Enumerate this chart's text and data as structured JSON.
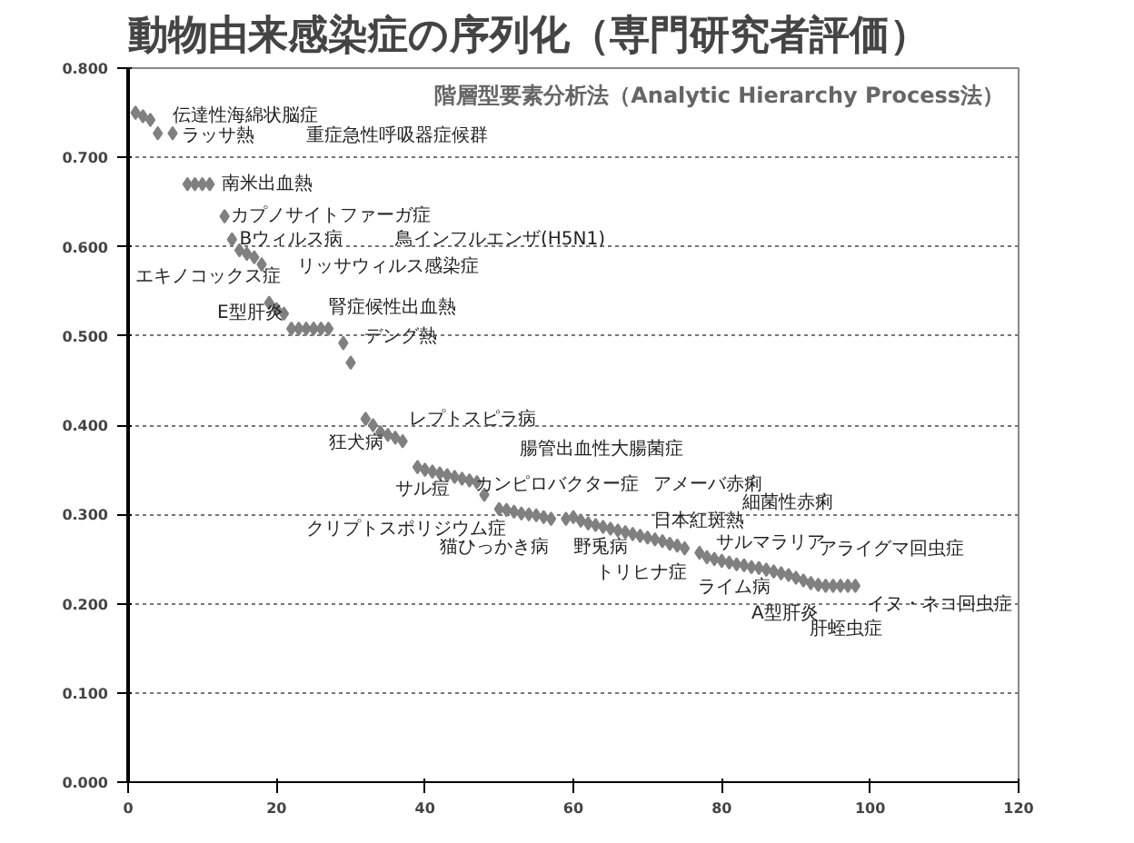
{
  "chart_data": {
    "type": "scatter",
    "title": "動物由来感染症の序列化（専門研究者評価）",
    "x": [
      1,
      2,
      3,
      4,
      6,
      8,
      9,
      10,
      11,
      13,
      14,
      15,
      16,
      17,
      18,
      19,
      20,
      21,
      22,
      23,
      24,
      25,
      26,
      27,
      29,
      30,
      32,
      33,
      34,
      35,
      36,
      37,
      39,
      40,
      41,
      42,
      43,
      44,
      45,
      46,
      47,
      48,
      50,
      51,
      52,
      53,
      54,
      55,
      56,
      57,
      59,
      60,
      61,
      62,
      63,
      64,
      65,
      66,
      67,
      68,
      69,
      70,
      71,
      72,
      73,
      74,
      75,
      77,
      78,
      79,
      80,
      81,
      82,
      83,
      84,
      85,
      86,
      87,
      88,
      89,
      90,
      91,
      92,
      93,
      94,
      95,
      96,
      97,
      98
    ],
    "series": [
      {
        "color": "#808080",
        "values": [
          0.75,
          0.746,
          0.742,
          0.727,
          0.727,
          0.67,
          0.67,
          0.67,
          0.67,
          0.634,
          0.608,
          0.596,
          0.592,
          0.588,
          0.58,
          0.537,
          0.53,
          0.525,
          0.508,
          0.508,
          0.508,
          0.508,
          0.508,
          0.508,
          0.492,
          0.47,
          0.407,
          0.4,
          0.392,
          0.389,
          0.386,
          0.382,
          0.353,
          0.35,
          0.348,
          0.346,
          0.344,
          0.342,
          0.34,
          0.338,
          0.336,
          0.322,
          0.306,
          0.305,
          0.303,
          0.301,
          0.3,
          0.299,
          0.297,
          0.295,
          0.295,
          0.297,
          0.293,
          0.29,
          0.288,
          0.286,
          0.284,
          0.282,
          0.28,
          0.278,
          0.276,
          0.274,
          0.272,
          0.27,
          0.267,
          0.265,
          0.262,
          0.257,
          0.252,
          0.25,
          0.248,
          0.246,
          0.244,
          0.243,
          0.241,
          0.24,
          0.238,
          0.236,
          0.234,
          0.232,
          0.229,
          0.226,
          0.223,
          0.221,
          0.22,
          0.22,
          0.22,
          0.22,
          0.22
        ]
      }
    ],
    "marker": "diamond",
    "xlim": [
      0,
      120
    ],
    "xticks": [
      0,
      20,
      40,
      60,
      80,
      100,
      120
    ],
    "ylim": [
      0,
      0.8
    ],
    "yticks": [
      {
        "value": 0,
        "label": "0.000"
      },
      {
        "value": 0.1,
        "label": "0.100"
      },
      {
        "value": 0.2,
        "label": "0.200"
      },
      {
        "value": 0.3,
        "label": "0.300"
      },
      {
        "value": 0.4,
        "label": "0.400"
      },
      {
        "value": 0.5,
        "label": "0.500"
      },
      {
        "value": 0.6,
        "label": "0.600"
      },
      {
        "value": 0.7,
        "label": "0.700"
      },
      {
        "value": 0.8,
        "label": "0.800"
      }
    ],
    "grid": "y",
    "annotations": [
      "階層型要素分析法（Analytic Hierarchy Process法）",
      "伝達性海綿状脳症",
      "ラッサ熱",
      "重症急性呼吸器症候群",
      "南米出血熱",
      "カプノサイトファーガ症",
      "Bウィルス病",
      "鳥インフルエンザ(H5N1)",
      "リッサウィルス感染症",
      "エキノコックス症",
      "E型肝炎",
      "腎症候性出血熱",
      "デング熱",
      "レプトスピラ病",
      "狂犬病",
      "腸管出血性大腸菌症",
      "サル痘",
      "カンピロバクター症",
      "アメーバ赤痢",
      "細菌性赤痢",
      "クリプトスポリジウム症",
      "日本紅斑熱",
      "猫ひっかき病",
      "野兎病",
      "サルマラリア",
      "アライグマ回虫症",
      "トリヒナ症",
      "ライム病",
      "イヌ・ネコ回虫症",
      "A型肝炎",
      "肝蛭虫症"
    ]
  }
}
